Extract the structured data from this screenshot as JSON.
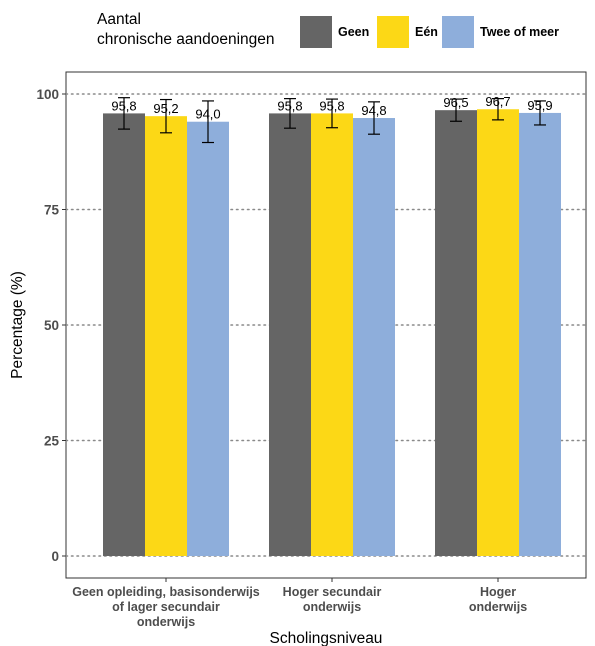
{
  "chart_data": {
    "type": "bar",
    "legend": {
      "title_line1": "Aantal",
      "title_line2": "chronische aandoeningen",
      "position": "top"
    },
    "xlabel": "Scholingsniveau",
    "ylabel": "Percentage (%)",
    "ylim": [
      0,
      100
    ],
    "yticks": [
      0,
      25,
      50,
      75,
      100
    ],
    "grid": "horizontal-dotted",
    "categories": [
      [
        "Geen opleiding, basisonderwijs",
        "of lager secundair",
        "onderwijs"
      ],
      [
        "Hoger secundair",
        "onderwijs"
      ],
      [
        "Hoger",
        "onderwijs"
      ]
    ],
    "series": [
      {
        "name": "Geen",
        "color": "#656565",
        "values": [
          95.8,
          95.8,
          96.5
        ],
        "labels": [
          "95,8",
          "95,8",
          "96,5"
        ],
        "err_low": [
          92.4,
          92.6,
          94.1
        ],
        "err_high": [
          99.2,
          99.0,
          98.9
        ]
      },
      {
        "name": "Eén",
        "color": "#fcd816",
        "values": [
          95.2,
          95.8,
          96.7
        ],
        "labels": [
          "95,2",
          "95,8",
          "96,7"
        ],
        "err_low": [
          91.6,
          92.7,
          94.4
        ],
        "err_high": [
          98.8,
          98.9,
          99.0
        ]
      },
      {
        "name": "Twee of meer",
        "color": "#8eaedb",
        "values": [
          94.0,
          94.8,
          95.9
        ],
        "labels": [
          "94,0",
          "94,8",
          "95,9"
        ],
        "err_low": [
          89.5,
          91.3,
          93.3
        ],
        "err_high": [
          98.5,
          98.3,
          98.5
        ]
      }
    ]
  }
}
